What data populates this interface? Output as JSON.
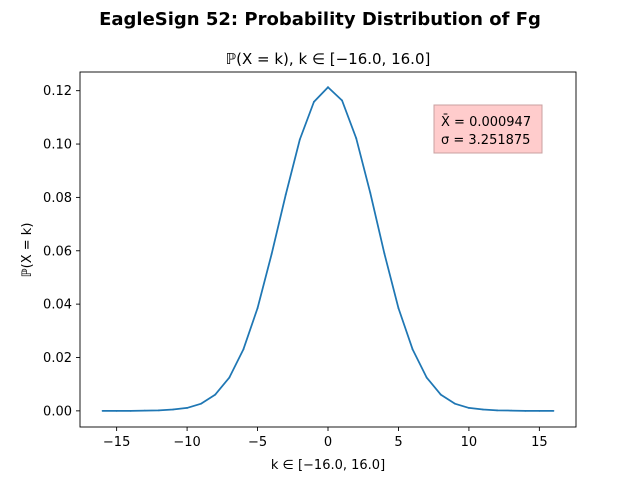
{
  "chart_data": {
    "type": "line",
    "suptitle": "EagleSign 52: Probability Distribution of Fg",
    "title": "ℙ(X = k), k ∈ [−16.0, 16.0]",
    "xlabel": "k ∈ [−16.0, 16.0]",
    "ylabel": "ℙ(X = k)",
    "xlim": [
      -17.6,
      17.6
    ],
    "ylim": [
      -0.00605,
      0.127
    ],
    "xticks": [
      -15,
      -10,
      -5,
      0,
      5,
      10,
      15
    ],
    "xtick_labels": [
      "−15",
      "−10",
      "−5",
      "0",
      "5",
      "10",
      "15"
    ],
    "yticks": [
      0.0,
      0.02,
      0.04,
      0.06,
      0.08,
      0.1,
      0.12
    ],
    "ytick_labels": [
      "0.00",
      "0.02",
      "0.04",
      "0.06",
      "0.08",
      "0.10",
      "0.12"
    ],
    "grid": false,
    "series": [
      {
        "color": "#1f77b4",
        "x": [
          -16,
          -15,
          -14,
          -13,
          -12,
          -11,
          -10,
          -9,
          -8,
          -7,
          -6,
          -5,
          -4,
          -3,
          -2,
          -1,
          0,
          1,
          2,
          3,
          4,
          5,
          6,
          7,
          8,
          9,
          10,
          11,
          12,
          13,
          14,
          15,
          16
        ],
        "y": [
          0.0,
          0.0,
          0.0,
          0.0001,
          0.0002,
          0.0005,
          0.0011,
          0.0027,
          0.0061,
          0.0125,
          0.0231,
          0.0385,
          0.0588,
          0.081,
          0.1017,
          0.1158,
          0.1213,
          0.1163,
          0.1022,
          0.0817,
          0.059,
          0.0385,
          0.0231,
          0.0125,
          0.0061,
          0.0027,
          0.0011,
          0.0005,
          0.0002,
          0.0001,
          0.0,
          0.0,
          0.0
        ]
      }
    ],
    "annotation": {
      "mean_label": "X̄ = 0.000947",
      "sigma_label": "σ = 3.251875",
      "facecolor": "#ffcccc",
      "edgecolor": "#c8a0a0",
      "placement": "top-right"
    }
  }
}
